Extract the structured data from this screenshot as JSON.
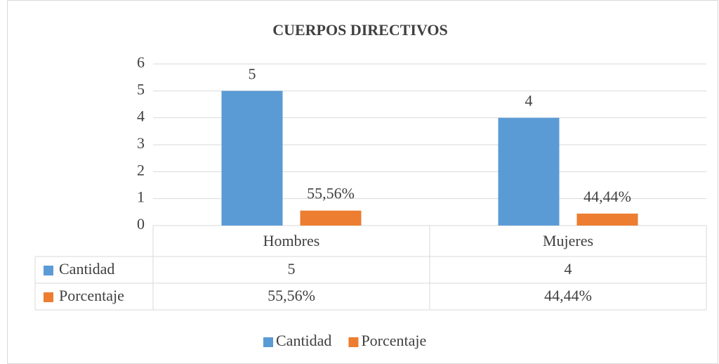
{
  "chart_data": {
    "type": "bar",
    "title": "CUERPOS DIRECTIVOS",
    "categories": [
      "Hombres",
      "Mujeres"
    ],
    "series": [
      {
        "name": "Cantidad",
        "color": "#5b9bd5",
        "values": [
          5,
          4
        ]
      },
      {
        "name": "Porcentaje",
        "color": "#ed7d31",
        "values": [
          0.5556,
          0.4444
        ],
        "value_labels": [
          "55,56%",
          "44,44%"
        ]
      }
    ],
    "ylim": [
      0,
      6
    ],
    "yticks": [
      0,
      1,
      2,
      3,
      4,
      5,
      6
    ],
    "grid": true,
    "legend": "bottom",
    "data_table": true
  }
}
